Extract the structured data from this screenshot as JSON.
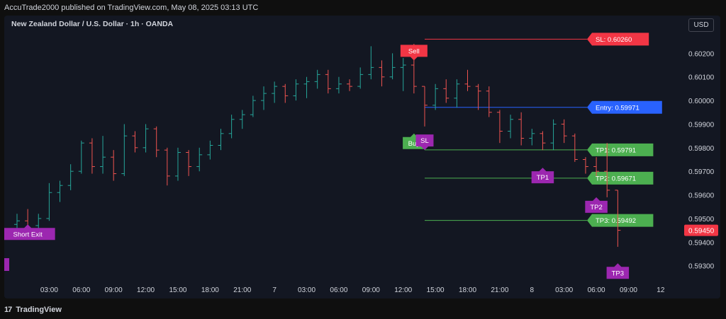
{
  "header": {
    "published_line": "AccuTrade2000 published on TradingView.com, May 08, 2025 03:13 UTC"
  },
  "chart_header": {
    "title": "New Zealand Dollar / U.S. Dollar · 1h · OANDA",
    "currency": "USD"
  },
  "footer": {
    "logo_glyph": "17",
    "brand": "TradingView"
  },
  "colors": {
    "bull": "#26a69a",
    "bear": "#ef5350",
    "sl": "#f23645",
    "entry": "#2962ff",
    "tp": "#4caf50",
    "label_purple": "#9c27b0",
    "buy": "#4caf50",
    "sell": "#f23645",
    "price_tag": "#f23645"
  },
  "chart_data": {
    "type": "ohlc",
    "ylim": [
      0.5923,
      0.6033
    ],
    "y_ticks": [
      "0.60200",
      "0.60100",
      "0.60000",
      "0.59900",
      "0.59800",
      "0.59700",
      "0.59600",
      "0.59500",
      "0.59400",
      "0.59300"
    ],
    "y_tick_values": [
      0.602,
      0.601,
      0.6,
      0.599,
      0.598,
      0.597,
      0.596,
      0.595,
      0.594,
      0.593
    ],
    "x_ticks": [
      "03:00",
      "06:00",
      "09:00",
      "12:00",
      "15:00",
      "18:00",
      "21:00",
      "7",
      "03:00",
      "06:00",
      "09:00",
      "12:00",
      "15:00",
      "18:00",
      "21:00",
      "8",
      "03:00",
      "06:00",
      "09:00",
      "12"
    ],
    "x_tick_index": [
      3,
      6,
      9,
      12,
      15,
      18,
      21,
      24,
      27,
      30,
      33,
      36,
      39,
      42,
      45,
      48,
      51,
      54,
      57,
      60
    ],
    "x_index_range": [
      0,
      61
    ],
    "bars": [
      {
        "i": 0,
        "o": 0.59475,
        "h": 0.5952,
        "l": 0.59445,
        "c": 0.5949
      },
      {
        "i": 1,
        "o": 0.5949,
        "h": 0.5954,
        "l": 0.5941,
        "c": 0.5945
      },
      {
        "i": 2,
        "o": 0.5947,
        "h": 0.5952,
        "l": 0.5945,
        "c": 0.595
      },
      {
        "i": 3,
        "o": 0.595,
        "h": 0.5965,
        "l": 0.5949,
        "c": 0.5961
      },
      {
        "i": 4,
        "o": 0.5961,
        "h": 0.5966,
        "l": 0.5957,
        "c": 0.5964
      },
      {
        "i": 5,
        "o": 0.5964,
        "h": 0.5973,
        "l": 0.5962,
        "c": 0.597
      },
      {
        "i": 6,
        "o": 0.597,
        "h": 0.5983,
        "l": 0.5969,
        "c": 0.5982
      },
      {
        "i": 7,
        "o": 0.5982,
        "h": 0.5984,
        "l": 0.5969,
        "c": 0.5972
      },
      {
        "i": 8,
        "o": 0.5972,
        "h": 0.5985,
        "l": 0.5969,
        "c": 0.5976
      },
      {
        "i": 9,
        "o": 0.5976,
        "h": 0.5979,
        "l": 0.5966,
        "c": 0.5969
      },
      {
        "i": 10,
        "o": 0.5969,
        "h": 0.599,
        "l": 0.5968,
        "c": 0.5985
      },
      {
        "i": 11,
        "o": 0.5985,
        "h": 0.5987,
        "l": 0.5978,
        "c": 0.598
      },
      {
        "i": 12,
        "o": 0.598,
        "h": 0.599,
        "l": 0.5978,
        "c": 0.5988
      },
      {
        "i": 13,
        "o": 0.5988,
        "h": 0.5989,
        "l": 0.5976,
        "c": 0.5979
      },
      {
        "i": 14,
        "o": 0.5979,
        "h": 0.598,
        "l": 0.5964,
        "c": 0.5968
      },
      {
        "i": 15,
        "o": 0.5968,
        "h": 0.598,
        "l": 0.5966,
        "c": 0.5978
      },
      {
        "i": 16,
        "o": 0.5978,
        "h": 0.5979,
        "l": 0.5968,
        "c": 0.5972
      },
      {
        "i": 17,
        "o": 0.5972,
        "h": 0.598,
        "l": 0.597,
        "c": 0.5977
      },
      {
        "i": 18,
        "o": 0.5977,
        "h": 0.5983,
        "l": 0.5975,
        "c": 0.5981
      },
      {
        "i": 19,
        "o": 0.5981,
        "h": 0.5988,
        "l": 0.5979,
        "c": 0.5986
      },
      {
        "i": 20,
        "o": 0.5986,
        "h": 0.5994,
        "l": 0.5984,
        "c": 0.5992
      },
      {
        "i": 21,
        "o": 0.5992,
        "h": 0.5996,
        "l": 0.5988,
        "c": 0.5994
      },
      {
        "i": 22,
        "o": 0.5994,
        "h": 0.6002,
        "l": 0.5993,
        "c": 0.6
      },
      {
        "i": 23,
        "o": 0.6,
        "h": 0.6006,
        "l": 0.5996,
        "c": 0.6003
      },
      {
        "i": 24,
        "o": 0.6003,
        "h": 0.6008,
        "l": 0.5999,
        "c": 0.6006
      },
      {
        "i": 25,
        "o": 0.6006,
        "h": 0.6007,
        "l": 0.5999,
        "c": 0.6002
      },
      {
        "i": 26,
        "o": 0.6002,
        "h": 0.6009,
        "l": 0.6,
        "c": 0.6007
      },
      {
        "i": 27,
        "o": 0.6007,
        "h": 0.601,
        "l": 0.6001,
        "c": 0.6008
      },
      {
        "i": 28,
        "o": 0.6008,
        "h": 0.6013,
        "l": 0.6005,
        "c": 0.6011
      },
      {
        "i": 29,
        "o": 0.6011,
        "h": 0.6013,
        "l": 0.6003,
        "c": 0.6005
      },
      {
        "i": 30,
        "o": 0.6005,
        "h": 0.601,
        "l": 0.6003,
        "c": 0.6007
      },
      {
        "i": 31,
        "o": 0.6007,
        "h": 0.6009,
        "l": 0.6004,
        "c": 0.6006
      },
      {
        "i": 32,
        "o": 0.6006,
        "h": 0.6014,
        "l": 0.6005,
        "c": 0.6011
      },
      {
        "i": 33,
        "o": 0.6011,
        "h": 0.6023,
        "l": 0.6009,
        "c": 0.6014
      },
      {
        "i": 34,
        "o": 0.6014,
        "h": 0.6017,
        "l": 0.6006,
        "c": 0.601
      },
      {
        "i": 35,
        "o": 0.601,
        "h": 0.602,
        "l": 0.6009,
        "c": 0.6014
      },
      {
        "i": 36,
        "o": 0.6014,
        "h": 0.6018,
        "l": 0.6004,
        "c": 0.6015
      },
      {
        "i": 37,
        "o": 0.6015,
        "h": 0.6024,
        "l": 0.6003,
        "c": 0.6006
      },
      {
        "i": 38,
        "o": 0.6006,
        "h": 0.6006,
        "l": 0.5989,
        "c": 0.5998
      },
      {
        "i": 39,
        "o": 0.5998,
        "h": 0.6007,
        "l": 0.5996,
        "c": 0.6005
      },
      {
        "i": 40,
        "o": 0.6005,
        "h": 0.6009,
        "l": 0.5999,
        "c": 0.6001
      },
      {
        "i": 41,
        "o": 0.6001,
        "h": 0.6009,
        "l": 0.5997,
        "c": 0.6007
      },
      {
        "i": 42,
        "o": 0.6007,
        "h": 0.6013,
        "l": 0.6004,
        "c": 0.6006
      },
      {
        "i": 43,
        "o": 0.6006,
        "h": 0.6007,
        "l": 0.5996,
        "c": 0.6004
      },
      {
        "i": 44,
        "o": 0.6004,
        "h": 0.6006,
        "l": 0.5993,
        "c": 0.5995
      },
      {
        "i": 45,
        "o": 0.5995,
        "h": 0.5996,
        "l": 0.5982,
        "c": 0.5987
      },
      {
        "i": 46,
        "o": 0.5987,
        "h": 0.5994,
        "l": 0.5984,
        "c": 0.5992
      },
      {
        "i": 47,
        "o": 0.5992,
        "h": 0.5995,
        "l": 0.5981,
        "c": 0.5984
      },
      {
        "i": 48,
        "o": 0.5984,
        "h": 0.5988,
        "l": 0.5981,
        "c": 0.5986
      },
      {
        "i": 49,
        "o": 0.5986,
        "h": 0.5987,
        "l": 0.5979,
        "c": 0.5982
      },
      {
        "i": 50,
        "o": 0.5982,
        "h": 0.5992,
        "l": 0.5979,
        "c": 0.599
      },
      {
        "i": 51,
        "o": 0.599,
        "h": 0.5992,
        "l": 0.5982,
        "c": 0.5985
      },
      {
        "i": 52,
        "o": 0.5985,
        "h": 0.5986,
        "l": 0.5974,
        "c": 0.5975
      },
      {
        "i": 53,
        "o": 0.5975,
        "h": 0.5976,
        "l": 0.5969,
        "c": 0.5972
      },
      {
        "i": 54,
        "o": 0.5972,
        "h": 0.5976,
        "l": 0.5968,
        "c": 0.597
      },
      {
        "i": 55,
        "o": 0.597,
        "h": 0.5982,
        "l": 0.5959,
        "c": 0.5962
      },
      {
        "i": 56,
        "o": 0.5962,
        "h": 0.5962,
        "l": 0.5938,
        "c": 0.5945
      }
    ],
    "levels": [
      {
        "kind": "sl",
        "label": "SL: 0.60260",
        "value": 0.6026
      },
      {
        "kind": "entry",
        "label": "Entry: 0.59971",
        "value": 0.59971
      },
      {
        "kind": "tp",
        "label": "TP1: 0.59791",
        "value": 0.59791
      },
      {
        "kind": "tp",
        "label": "TP2: 0.59671",
        "value": 0.59671
      },
      {
        "kind": "tp",
        "label": "TP3: 0.59492",
        "value": 0.59492
      }
    ],
    "level_start_index": 38,
    "signals": [
      {
        "text": "Short Exit",
        "index": 1,
        "value": 0.59475,
        "dir": "up",
        "color": "label_purple"
      },
      {
        "text": "Sell",
        "index": 37,
        "value": 0.6017,
        "dir": "down",
        "color": "sell"
      },
      {
        "text": "Buy",
        "index": 37,
        "value": 0.5986,
        "dir": "up",
        "color": "buy"
      },
      {
        "text": "SL",
        "index": 38,
        "value": 0.5979,
        "dir": "down",
        "color": "label_purple"
      },
      {
        "text": "TP1",
        "index": 49,
        "value": 0.59715,
        "dir": "up",
        "color": "label_purple"
      },
      {
        "text": "TP2",
        "index": 54,
        "value": 0.5959,
        "dir": "up",
        "color": "label_purple"
      },
      {
        "text": "TP3",
        "index": 56,
        "value": 0.5931,
        "dir": "up",
        "color": "label_purple"
      }
    ],
    "last_price": {
      "label": "0.59450",
      "value": 0.5945
    }
  }
}
